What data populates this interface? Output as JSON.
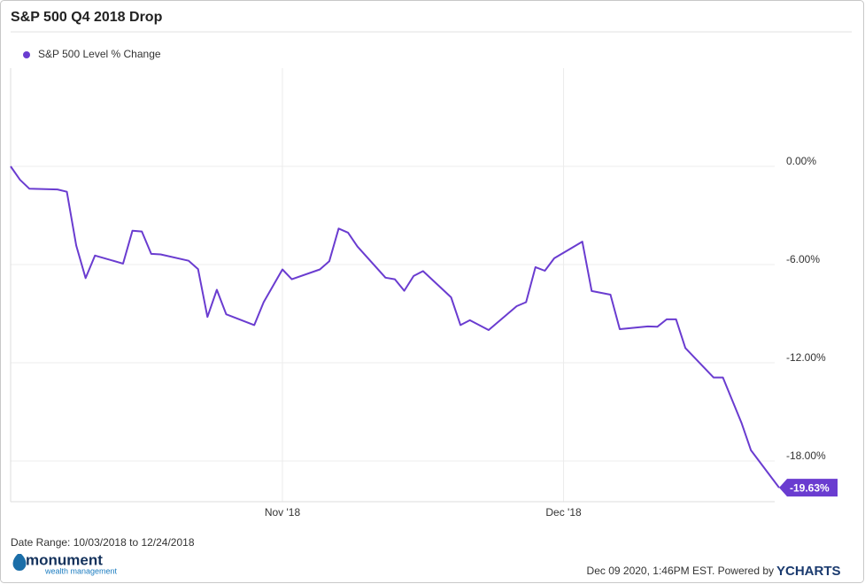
{
  "chart_data": {
    "type": "line",
    "title": "S&P 500 Q4 2018 Drop",
    "x": [
      "2018-10-03",
      "2018-10-04",
      "2018-10-05",
      "2018-10-08",
      "2018-10-09",
      "2018-10-10",
      "2018-10-11",
      "2018-10-12",
      "2018-10-15",
      "2018-10-16",
      "2018-10-17",
      "2018-10-18",
      "2018-10-19",
      "2018-10-22",
      "2018-10-23",
      "2018-10-24",
      "2018-10-25",
      "2018-10-26",
      "2018-10-29",
      "2018-10-30",
      "2018-10-31",
      "2018-11-01",
      "2018-11-02",
      "2018-11-05",
      "2018-11-06",
      "2018-11-07",
      "2018-11-08",
      "2018-11-09",
      "2018-11-12",
      "2018-11-13",
      "2018-11-14",
      "2018-11-15",
      "2018-11-16",
      "2018-11-19",
      "2018-11-20",
      "2018-11-21",
      "2018-11-23",
      "2018-11-26",
      "2018-11-27",
      "2018-11-28",
      "2018-11-29",
      "2018-11-30",
      "2018-12-03",
      "2018-12-04",
      "2018-12-06",
      "2018-12-07",
      "2018-12-10",
      "2018-12-11",
      "2018-12-12",
      "2018-12-13",
      "2018-12-14",
      "2018-12-17",
      "2018-12-18",
      "2018-12-19",
      "2018-12-20",
      "2018-12-21",
      "2018-12-24"
    ],
    "series": [
      {
        "name": "S&P 500 Level % Change",
        "color": "#6a3cd0",
        "values": [
          0,
          -0.82,
          -1.37,
          -1.41,
          -1.55,
          -4.84,
          -6.83,
          -5.45,
          -5.94,
          -3.93,
          -3.98,
          -5.35,
          -5.38,
          -5.77,
          -6.28,
          -9.2,
          -7.54,
          -9.04,
          -9.7,
          -8.3,
          -7.3,
          -6.3,
          -6.9,
          -6.3,
          -5.8,
          -3.8,
          -4.05,
          -4.9,
          -6.8,
          -6.9,
          -7.6,
          -6.7,
          -6.4,
          -8.0,
          -9.7,
          -9.4,
          -10.0,
          -8.54,
          -8.3,
          -6.16,
          -6.38,
          -5.62,
          -4.6,
          -7.62,
          -7.84,
          -9.95,
          -9.78,
          -9.8,
          -9.35,
          -9.35,
          -11.1,
          -12.9,
          -12.9,
          -14.3,
          -15.7,
          -17.35,
          -19.63
        ],
        "value_labels": [
          null,
          null,
          null,
          null,
          null,
          null,
          null,
          null,
          null,
          null,
          null,
          null,
          null,
          null,
          null,
          null,
          null,
          null,
          null,
          null,
          null,
          null,
          null,
          null,
          null,
          null,
          null,
          null,
          null,
          null,
          null,
          null,
          null,
          null,
          null,
          null,
          null,
          null,
          null,
          null,
          null,
          null,
          null,
          null,
          null,
          null,
          null,
          null,
          null,
          null,
          null,
          null,
          null,
          null,
          null,
          null,
          "-19.63%"
        ]
      }
    ],
    "xlim": [
      "2018-10-03",
      "2018-12-24"
    ],
    "xticks": [
      {
        "value": "2018-11-01",
        "label": "Nov '18"
      },
      {
        "value": "2018-12-01",
        "label": "Dec '18"
      }
    ],
    "ylim": [
      -20.49,
      6
    ],
    "yticks": [
      {
        "value": 0,
        "label": "0.00%"
      },
      {
        "value": -6,
        "label": "-6.00%"
      },
      {
        "value": -12,
        "label": "-12.00%"
      },
      {
        "value": -18,
        "label": "-18.00%"
      }
    ],
    "grid": true,
    "date_range": "Date Range: 10/03/2018 to 12/24/2018",
    "timestamp": "Dec 09 2020, 1:46PM EST. Powered by",
    "brand": "YCHARTS",
    "logo_name": "monument",
    "logo_tagline": "wealth management"
  }
}
